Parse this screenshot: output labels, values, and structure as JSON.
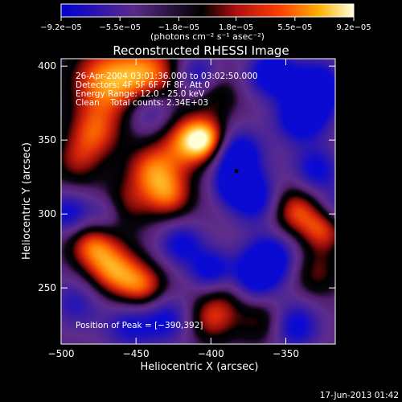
{
  "chart_data": {
    "type": "heatmap",
    "title": "Reconstructed RHESSI Image",
    "xlabel": "Heliocentric X (arcsec)",
    "ylabel": "Heliocentric Y (arcsec)",
    "xlim": [
      -500,
      -317
    ],
    "ylim": [
      212,
      405
    ],
    "x_ticks": [
      -500,
      -450,
      -400,
      -350
    ],
    "y_ticks": [
      250,
      300,
      350,
      400
    ],
    "x_tick_labels": [
      "−500",
      "−450",
      "−400",
      "−350"
    ],
    "y_tick_labels": [
      "250",
      "300",
      "350",
      "400"
    ],
    "colorbar": {
      "ticks": [
        "−9.2e−05",
        "−5.5e−05",
        "−1.8e−05",
        "1.8e−05",
        "5.5e−05",
        "9.2e−05"
      ],
      "tick_values": [
        -9.2e-05,
        -5.5e-05,
        -1.8e-05,
        1.8e-05,
        5.5e-05,
        9.2e-05
      ],
      "range": [
        -9.2e-05,
        9.2e-05
      ],
      "units_label": "(photons cm⁻² s⁻¹ asec⁻²)",
      "colors": [
        "#0000d0",
        "#3a1a9a",
        "#5a2a8a",
        "#000000",
        "#a01010",
        "#ff4000",
        "#ffb000",
        "#ffffc0"
      ]
    },
    "annotations": [
      "26-Apr-2004 03:01:36.000 to 03:02:50.000",
      "Detectors: 4F 5F 6F 7F 8F, Att 0",
      "Energy Range: 12.0 - 25.0 keV",
      "Clean    Total counts: 2.34E+03"
    ],
    "peak": {
      "label": "Position of Peak = [−390,392]",
      "x": -390,
      "y": 392
    },
    "marker": {
      "x": -383,
      "y": 329
    },
    "blobs": [
      {
        "x": -470,
        "y": 390,
        "v": 1.0,
        "s": 18
      },
      {
        "x": -440,
        "y": 395,
        "v": 0.8,
        "s": 15
      },
      {
        "x": -415,
        "y": 350,
        "v": 0.9,
        "s": 14
      },
      {
        "x": -403,
        "y": 350,
        "v": 0.85,
        "s": 10
      },
      {
        "x": -478,
        "y": 355,
        "v": 0.7,
        "s": 13
      },
      {
        "x": -490,
        "y": 335,
        "v": 0.5,
        "s": 12
      },
      {
        "x": -440,
        "y": 330,
        "v": 0.8,
        "s": 13
      },
      {
        "x": -428,
        "y": 312,
        "v": 0.75,
        "s": 12
      },
      {
        "x": -460,
        "y": 305,
        "v": 0.6,
        "s": 12
      },
      {
        "x": -480,
        "y": 280,
        "v": 0.8,
        "s": 12
      },
      {
        "x": -465,
        "y": 262,
        "v": 0.9,
        "s": 13
      },
      {
        "x": -445,
        "y": 250,
        "v": 0.8,
        "s": 12
      },
      {
        "x": -385,
        "y": 250,
        "v": 0.6,
        "s": 12
      },
      {
        "x": -345,
        "y": 303,
        "v": 0.8,
        "s": 12
      },
      {
        "x": -325,
        "y": 290,
        "v": 0.75,
        "s": 11
      },
      {
        "x": -330,
        "y": 260,
        "v": 0.5,
        "s": 12
      },
      {
        "x": -400,
        "y": 230,
        "v": 0.7,
        "s": 12
      },
      {
        "x": -365,
        "y": 228,
        "v": 0.55,
        "s": 12
      },
      {
        "x": -395,
        "y": 380,
        "v": 0.4,
        "s": 10
      },
      {
        "x": -383,
        "y": 340,
        "v": -1.0,
        "s": 12
      },
      {
        "x": -385,
        "y": 320,
        "v": -0.7,
        "s": 10
      },
      {
        "x": -370,
        "y": 310,
        "v": -0.8,
        "s": 12
      },
      {
        "x": -330,
        "y": 385,
        "v": -1.0,
        "s": 13
      },
      {
        "x": -340,
        "y": 365,
        "v": -0.9,
        "s": 12
      },
      {
        "x": -360,
        "y": 395,
        "v": -0.9,
        "s": 11
      },
      {
        "x": -375,
        "y": 255,
        "v": -1.0,
        "s": 12
      },
      {
        "x": -360,
        "y": 270,
        "v": -0.9,
        "s": 12
      },
      {
        "x": -345,
        "y": 225,
        "v": -0.8,
        "s": 12
      },
      {
        "x": -330,
        "y": 330,
        "v": -0.7,
        "s": 11
      },
      {
        "x": -420,
        "y": 280,
        "v": -0.7,
        "s": 11
      },
      {
        "x": -400,
        "y": 262,
        "v": -0.8,
        "s": 10
      },
      {
        "x": -440,
        "y": 370,
        "v": -0.6,
        "s": 11
      },
      {
        "x": -470,
        "y": 300,
        "v": -0.6,
        "s": 10
      },
      {
        "x": -495,
        "y": 300,
        "v": -0.7,
        "s": 10
      },
      {
        "x": -430,
        "y": 230,
        "v": -0.7,
        "s": 12
      },
      {
        "x": -455,
        "y": 225,
        "v": -0.6,
        "s": 12
      },
      {
        "x": -490,
        "y": 240,
        "v": -0.5,
        "s": 12
      },
      {
        "x": -410,
        "y": 395,
        "v": -0.6,
        "s": 10
      },
      {
        "x": -315,
        "y": 305,
        "v": -0.5,
        "s": 10
      }
    ]
  },
  "footer": {
    "timestamp": "17-Jun-2013 01:42"
  }
}
